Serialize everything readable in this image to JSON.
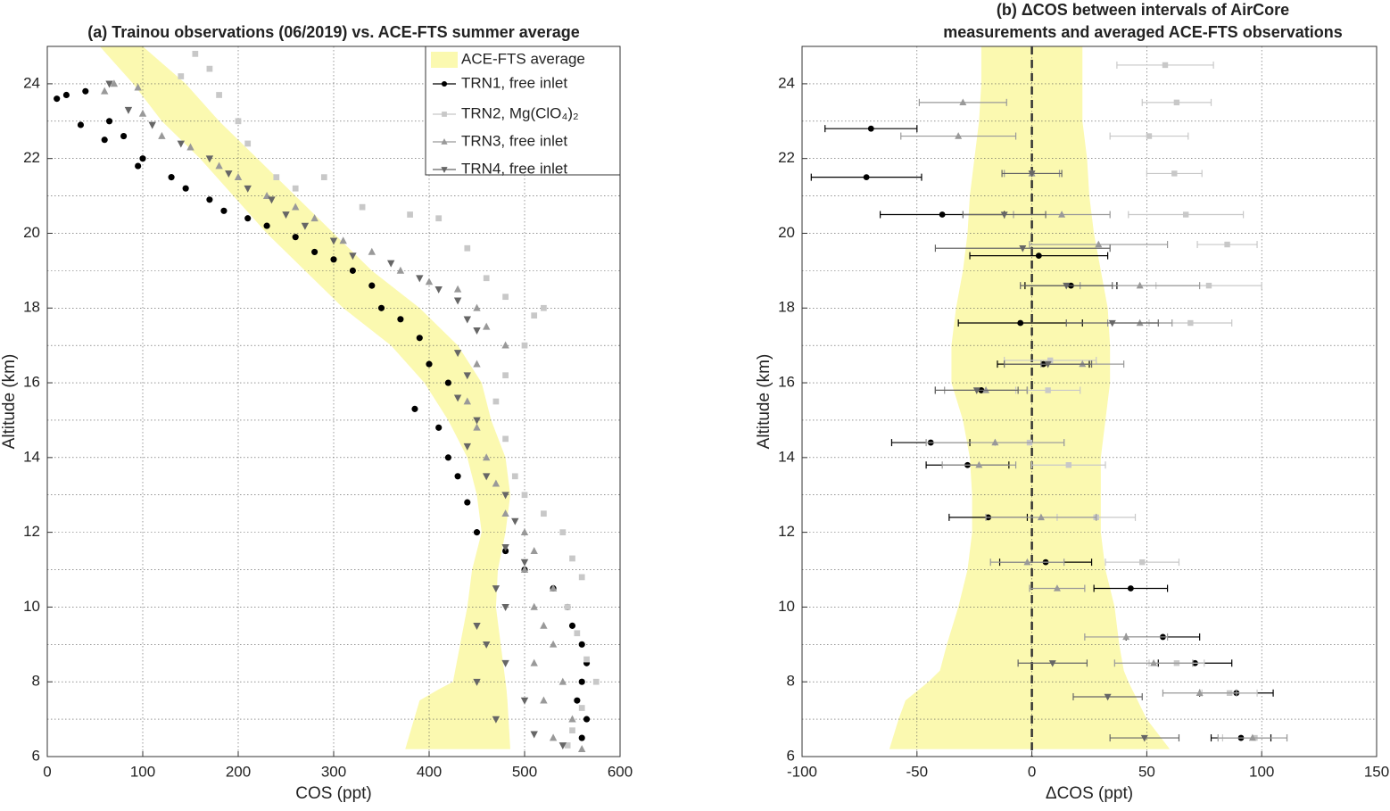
{
  "chart_data": [
    {
      "type": "scatter",
      "title": "(a) Trainou observations (06/2019) vs. ACE-FTS summer average",
      "x_label": "COS (ppt)",
      "y_label": "Altitude (km)",
      "xlim": [
        0,
        600
      ],
      "ylim": [
        6,
        25
      ],
      "xticks": [
        0,
        100,
        200,
        300,
        400,
        500,
        600
      ],
      "yticks": [
        6,
        8,
        10,
        12,
        14,
        16,
        18,
        20,
        22,
        24
      ],
      "yminorticks": [
        7,
        9,
        11,
        13,
        15,
        17,
        19,
        21,
        23,
        25
      ],
      "grid": true,
      "legend": "northeast",
      "band": {
        "name": "ACE-FTS average",
        "color": "#fbf9b0",
        "y": [
          6.2,
          7.5,
          7.8,
          8,
          10,
          11,
          12,
          13,
          14,
          15,
          16,
          17,
          18,
          19,
          20,
          21,
          22,
          23,
          24,
          25
        ],
        "lower": [
          375,
          390,
          410,
          425,
          440,
          445,
          455,
          450,
          440,
          420,
          395,
          360,
          310,
          270,
          230,
          195,
          160,
          120,
          90,
          55
        ],
        "upper": [
          485,
          482,
          481,
          480,
          470,
          472,
          480,
          485,
          480,
          465,
          455,
          430,
          390,
          340,
          300,
          260,
          220,
          180,
          145,
          100
        ]
      },
      "series": [
        {
          "name": "TRN1, free inlet",
          "color": "#000000",
          "marker": "circle",
          "x": [
            10,
            20,
            40,
            35,
            60,
            65,
            80,
            95,
            100,
            130,
            145,
            170,
            185,
            210,
            230,
            260,
            280,
            300,
            320,
            340,
            350,
            370,
            390,
            400,
            420,
            385,
            410,
            420,
            430,
            440,
            450,
            480,
            500,
            530,
            545,
            550,
            560,
            565,
            560,
            555,
            565,
            560
          ],
          "y": [
            23.6,
            23.7,
            23.8,
            22.9,
            22.5,
            23,
            22.6,
            21.8,
            22,
            21.5,
            21.2,
            20.9,
            20.6,
            20.4,
            20.2,
            19.9,
            19.5,
            19.3,
            19,
            18.6,
            18,
            17.7,
            17.2,
            16.5,
            16,
            15.3,
            14.8,
            14,
            13.5,
            12.8,
            12,
            11.5,
            11,
            10.5,
            10,
            9.5,
            9,
            8.5,
            8,
            7.5,
            7,
            6.5
          ]
        },
        {
          "name": "TRN2, Mg(ClO₄)₂",
          "color": "#c8c8c8",
          "marker": "square",
          "x": [
            155,
            170,
            140,
            180,
            200,
            210,
            240,
            260,
            290,
            330,
            380,
            410,
            440,
            460,
            480,
            510,
            520,
            500,
            480,
            470,
            480,
            490,
            500,
            520,
            540,
            550,
            560,
            545,
            555,
            565,
            575,
            560,
            550,
            545
          ],
          "y": [
            24.8,
            24.4,
            24.2,
            23.7,
            23,
            22.4,
            21.5,
            21.2,
            21.5,
            20.7,
            20.5,
            20.4,
            19.6,
            18.8,
            18.3,
            17.8,
            18,
            17,
            16.2,
            15.5,
            14.5,
            13.5,
            13,
            12.5,
            12,
            11.3,
            10.8,
            10,
            9.3,
            8.6,
            8,
            7.3,
            6.7,
            6.3
          ]
        },
        {
          "name": "TRN3, free inlet",
          "color": "#999999",
          "marker": "triangle-up",
          "x": [
            70,
            60,
            95,
            100,
            120,
            150,
            180,
            200,
            230,
            260,
            280,
            310,
            340,
            370,
            400,
            430,
            450,
            460,
            480,
            450,
            440,
            450,
            460,
            470,
            480,
            500,
            510,
            500,
            530,
            510,
            520,
            530,
            510,
            540,
            520,
            550,
            530,
            560
          ],
          "y": [
            24,
            23.8,
            23.9,
            23.2,
            22.6,
            22.3,
            21.8,
            21.5,
            21,
            20.7,
            20.4,
            19.8,
            19.5,
            19,
            18.7,
            18.5,
            18,
            17.5,
            17,
            16.5,
            15.5,
            14.8,
            14,
            13.3,
            12.5,
            12,
            11.5,
            11,
            10.5,
            10,
            9.5,
            9,
            8.5,
            8,
            7.5,
            7,
            6.5,
            6.2
          ]
        },
        {
          "name": "TRN4, free inlet",
          "color": "#666666",
          "marker": "triangle-down",
          "x": [
            65,
            85,
            110,
            140,
            170,
            190,
            210,
            235,
            250,
            270,
            300,
            320,
            360,
            390,
            410,
            430,
            440,
            450,
            430,
            440,
            430,
            450,
            440,
            460,
            480,
            490,
            480,
            500,
            470,
            480,
            450,
            460,
            480,
            450,
            500,
            470,
            510,
            540
          ],
          "y": [
            24,
            23.3,
            22.9,
            22.4,
            22,
            21.6,
            21.2,
            20.9,
            20.5,
            20.2,
            19.8,
            19.4,
            19.2,
            18.8,
            18.5,
            18.2,
            17.7,
            17.4,
            16.8,
            16.2,
            15.6,
            15,
            14.3,
            13.5,
            13,
            12.3,
            11.6,
            11.2,
            10.5,
            10,
            9.5,
            9,
            8.5,
            8,
            7.5,
            7,
            6.6,
            6.3
          ]
        }
      ]
    },
    {
      "type": "errorbar",
      "title": [
        "(b) ΔCOS between intervals of AirCore",
        "measurements and averaged ACE-FTS observations"
      ],
      "x_label": "ΔCOS (ppt)",
      "y_label": "Altitude (km)",
      "xlim": [
        -100,
        150
      ],
      "ylim": [
        6,
        25
      ],
      "xticks": [
        -100,
        -50,
        0,
        50,
        100,
        150
      ],
      "yticks": [
        6,
        8,
        10,
        12,
        14,
        16,
        18,
        20,
        22,
        24
      ],
      "yminorticks": [
        7,
        9,
        11,
        13,
        15,
        17,
        19,
        21,
        23,
        25
      ],
      "grid": true,
      "zero_line": true,
      "band": {
        "color": "#fbf9b0",
        "y": [
          6.2,
          7,
          7.5,
          8,
          8.3,
          9,
          10,
          11,
          12,
          13,
          14,
          15,
          16,
          17,
          18,
          19,
          20,
          21,
          22,
          23,
          24,
          25
        ],
        "lower": [
          -62,
          -58,
          -55,
          -45,
          -40,
          -37,
          -32,
          -28,
          -26,
          -26,
          -27,
          -30,
          -35,
          -35,
          -33,
          -30,
          -28,
          -27,
          -25,
          -23,
          -22,
          -22
        ],
        "upper": [
          60,
          50,
          46,
          42,
          40,
          38,
          36,
          32,
          30,
          30,
          30,
          32,
          34,
          34,
          33,
          30,
          27,
          25,
          24,
          22,
          22,
          22
        ]
      },
      "series": [
        {
          "color": "#000000",
          "marker": "circle",
          "x": [
            -70,
            -72,
            -39,
            3,
            17,
            -5,
            5,
            -22,
            -44,
            -28,
            -19,
            6,
            43,
            57,
            71,
            89,
            91
          ],
          "y": [
            22.8,
            21.5,
            20.5,
            19.4,
            18.6,
            17.6,
            16.5,
            15.8,
            14.4,
            13.8,
            12.4,
            11.2,
            10.5,
            9.2,
            8.5,
            7.7,
            6.5
          ],
          "err": [
            20,
            24,
            27,
            30,
            20,
            27,
            20,
            20,
            17,
            18,
            17,
            20,
            16,
            16,
            16,
            16,
            13
          ]
        },
        {
          "color": "#c8c8c8",
          "marker": "square",
          "x": [
            58,
            63,
            51,
            62,
            67,
            85,
            77,
            69,
            8,
            7,
            -1,
            16,
            28,
            48,
            63,
            86,
            97
          ],
          "y": [
            24.5,
            23.5,
            22.6,
            21.6,
            20.5,
            19.7,
            18.6,
            17.6,
            16.6,
            15.8,
            14.4,
            13.8,
            12.4,
            11.2,
            8.5,
            7.7,
            6.5
          ],
          "err": [
            21,
            15,
            17,
            12,
            25,
            13,
            23,
            18,
            20,
            14,
            15,
            16,
            17,
            16,
            12,
            12,
            14
          ]
        },
        {
          "color": "#999999",
          "marker": "triangle-up",
          "x": [
            -30,
            -32,
            0,
            13,
            29,
            47,
            47,
            22,
            -20,
            -16,
            -23,
            4,
            -2,
            11,
            41,
            53,
            73,
            96
          ],
          "y": [
            23.5,
            22.6,
            21.6,
            20.5,
            19.7,
            18.6,
            17.6,
            16.5,
            15.8,
            14.4,
            13.8,
            12.4,
            11.2,
            10.5,
            9.2,
            8.5,
            7.7,
            6.5
          ],
          "err": [
            19,
            25,
            12,
            21,
            30,
            26,
            14,
            18,
            18,
            30,
            16,
            24,
            16,
            12,
            18,
            17,
            16,
            15
          ]
        },
        {
          "color": "#666666",
          "marker": "triangle-down",
          "x": [
            0,
            -12,
            -4,
            15,
            35,
            7,
            -24,
            9,
            33,
            49
          ],
          "y": [
            21.6,
            20.5,
            19.6,
            18.6,
            17.6,
            16.5,
            15.8,
            8.5,
            7.6,
            6.5
          ],
          "err": [
            13,
            18,
            38,
            20,
            20,
            19,
            18,
            15,
            15,
            15
          ]
        }
      ]
    }
  ]
}
